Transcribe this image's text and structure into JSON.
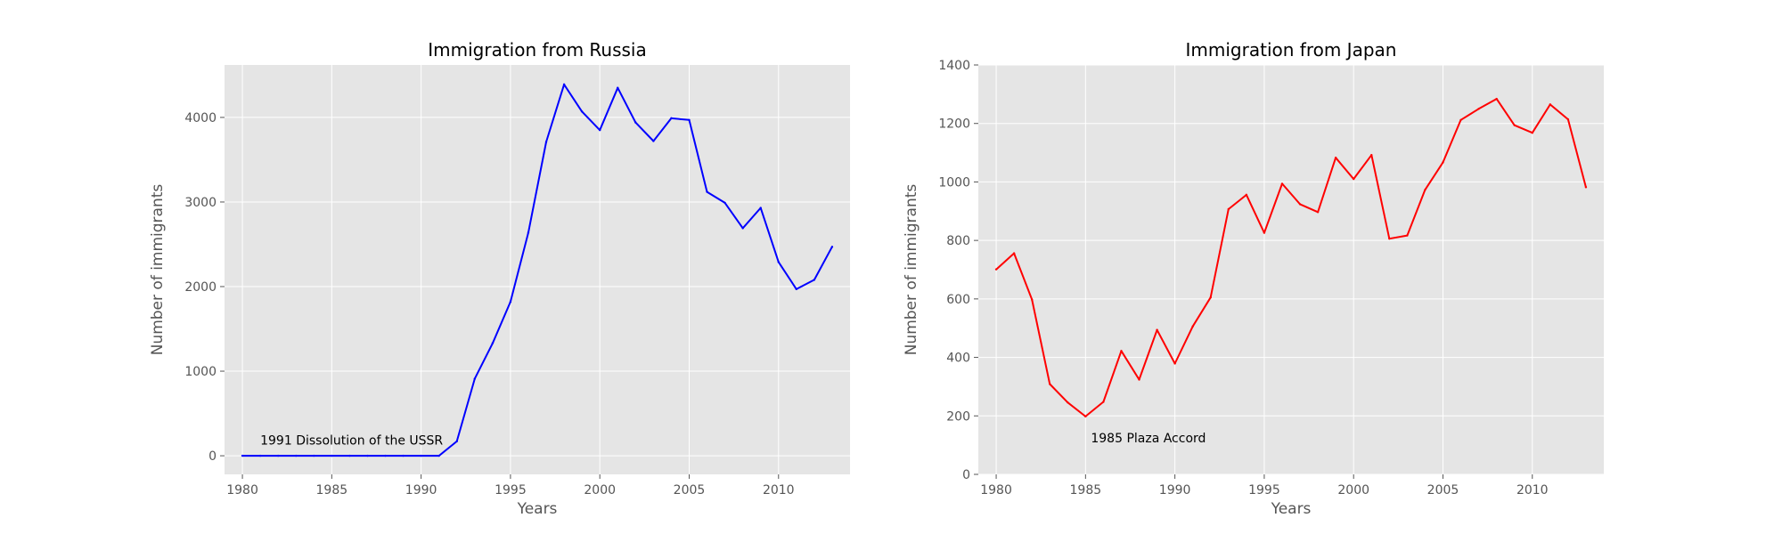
{
  "chart_data": [
    {
      "type": "line",
      "title": "Immigration from Russia",
      "xlabel": "Years",
      "ylabel": "Number of immigrants",
      "xlim": [
        1979,
        2014
      ],
      "ylim": [
        -220,
        4620
      ],
      "xticks": [
        1980,
        1985,
        1990,
        1995,
        2000,
        2005,
        2010
      ],
      "yticks": [
        0,
        1000,
        2000,
        3000,
        4000
      ],
      "grid": true,
      "color": "#0000ff",
      "x": [
        1980,
        1981,
        1982,
        1983,
        1984,
        1985,
        1986,
        1987,
        1988,
        1989,
        1990,
        1991,
        1992,
        1993,
        1994,
        1995,
        1996,
        1997,
        1998,
        1999,
        2000,
        2001,
        2002,
        2003,
        2004,
        2005,
        2006,
        2007,
        2008,
        2009,
        2010,
        2011,
        2012,
        2013
      ],
      "y": [
        0,
        0,
        0,
        0,
        0,
        0,
        0,
        0,
        0,
        0,
        0,
        0,
        170,
        910,
        1330,
        1820,
        2640,
        3710,
        4390,
        4070,
        3850,
        4350,
        3940,
        3720,
        3990,
        3970,
        3120,
        2990,
        2690,
        2930,
        2290,
        1970,
        2080,
        2470
      ],
      "annotation": {
        "text": "1991 Dissolution of the USSR",
        "x": 1981,
        "y": 130
      }
    },
    {
      "type": "line",
      "title": "Immigration from Japan",
      "xlabel": "Years",
      "ylabel": "Number of immigrants",
      "xlim": [
        1979,
        2014
      ],
      "ylim": [
        0,
        1400
      ],
      "xticks": [
        1980,
        1985,
        1990,
        1995,
        2000,
        2005,
        2010
      ],
      "yticks": [
        0,
        200,
        400,
        600,
        800,
        1000,
        1200,
        1400
      ],
      "grid": true,
      "color": "#ff0000",
      "x": [
        1980,
        1981,
        1982,
        1983,
        1984,
        1985,
        1986,
        1987,
        1988,
        1989,
        1990,
        1991,
        1992,
        1993,
        1994,
        1995,
        1996,
        1997,
        1998,
        1999,
        2000,
        2001,
        2002,
        2003,
        2004,
        2005,
        2006,
        2007,
        2008,
        2009,
        2010,
        2011,
        2012,
        2013
      ],
      "y": [
        701,
        756,
        598,
        309,
        246,
        198,
        248,
        422,
        324,
        494,
        379,
        506,
        605,
        907,
        956,
        826,
        994,
        924,
        897,
        1083,
        1010,
        1092,
        806,
        817,
        973,
        1067,
        1212,
        1250,
        1284,
        1194,
        1168,
        1265,
        1214,
        982
      ],
      "annotation": {
        "text": "1985 Plaza Accord",
        "x": 1985.3,
        "y": 110
      }
    }
  ]
}
